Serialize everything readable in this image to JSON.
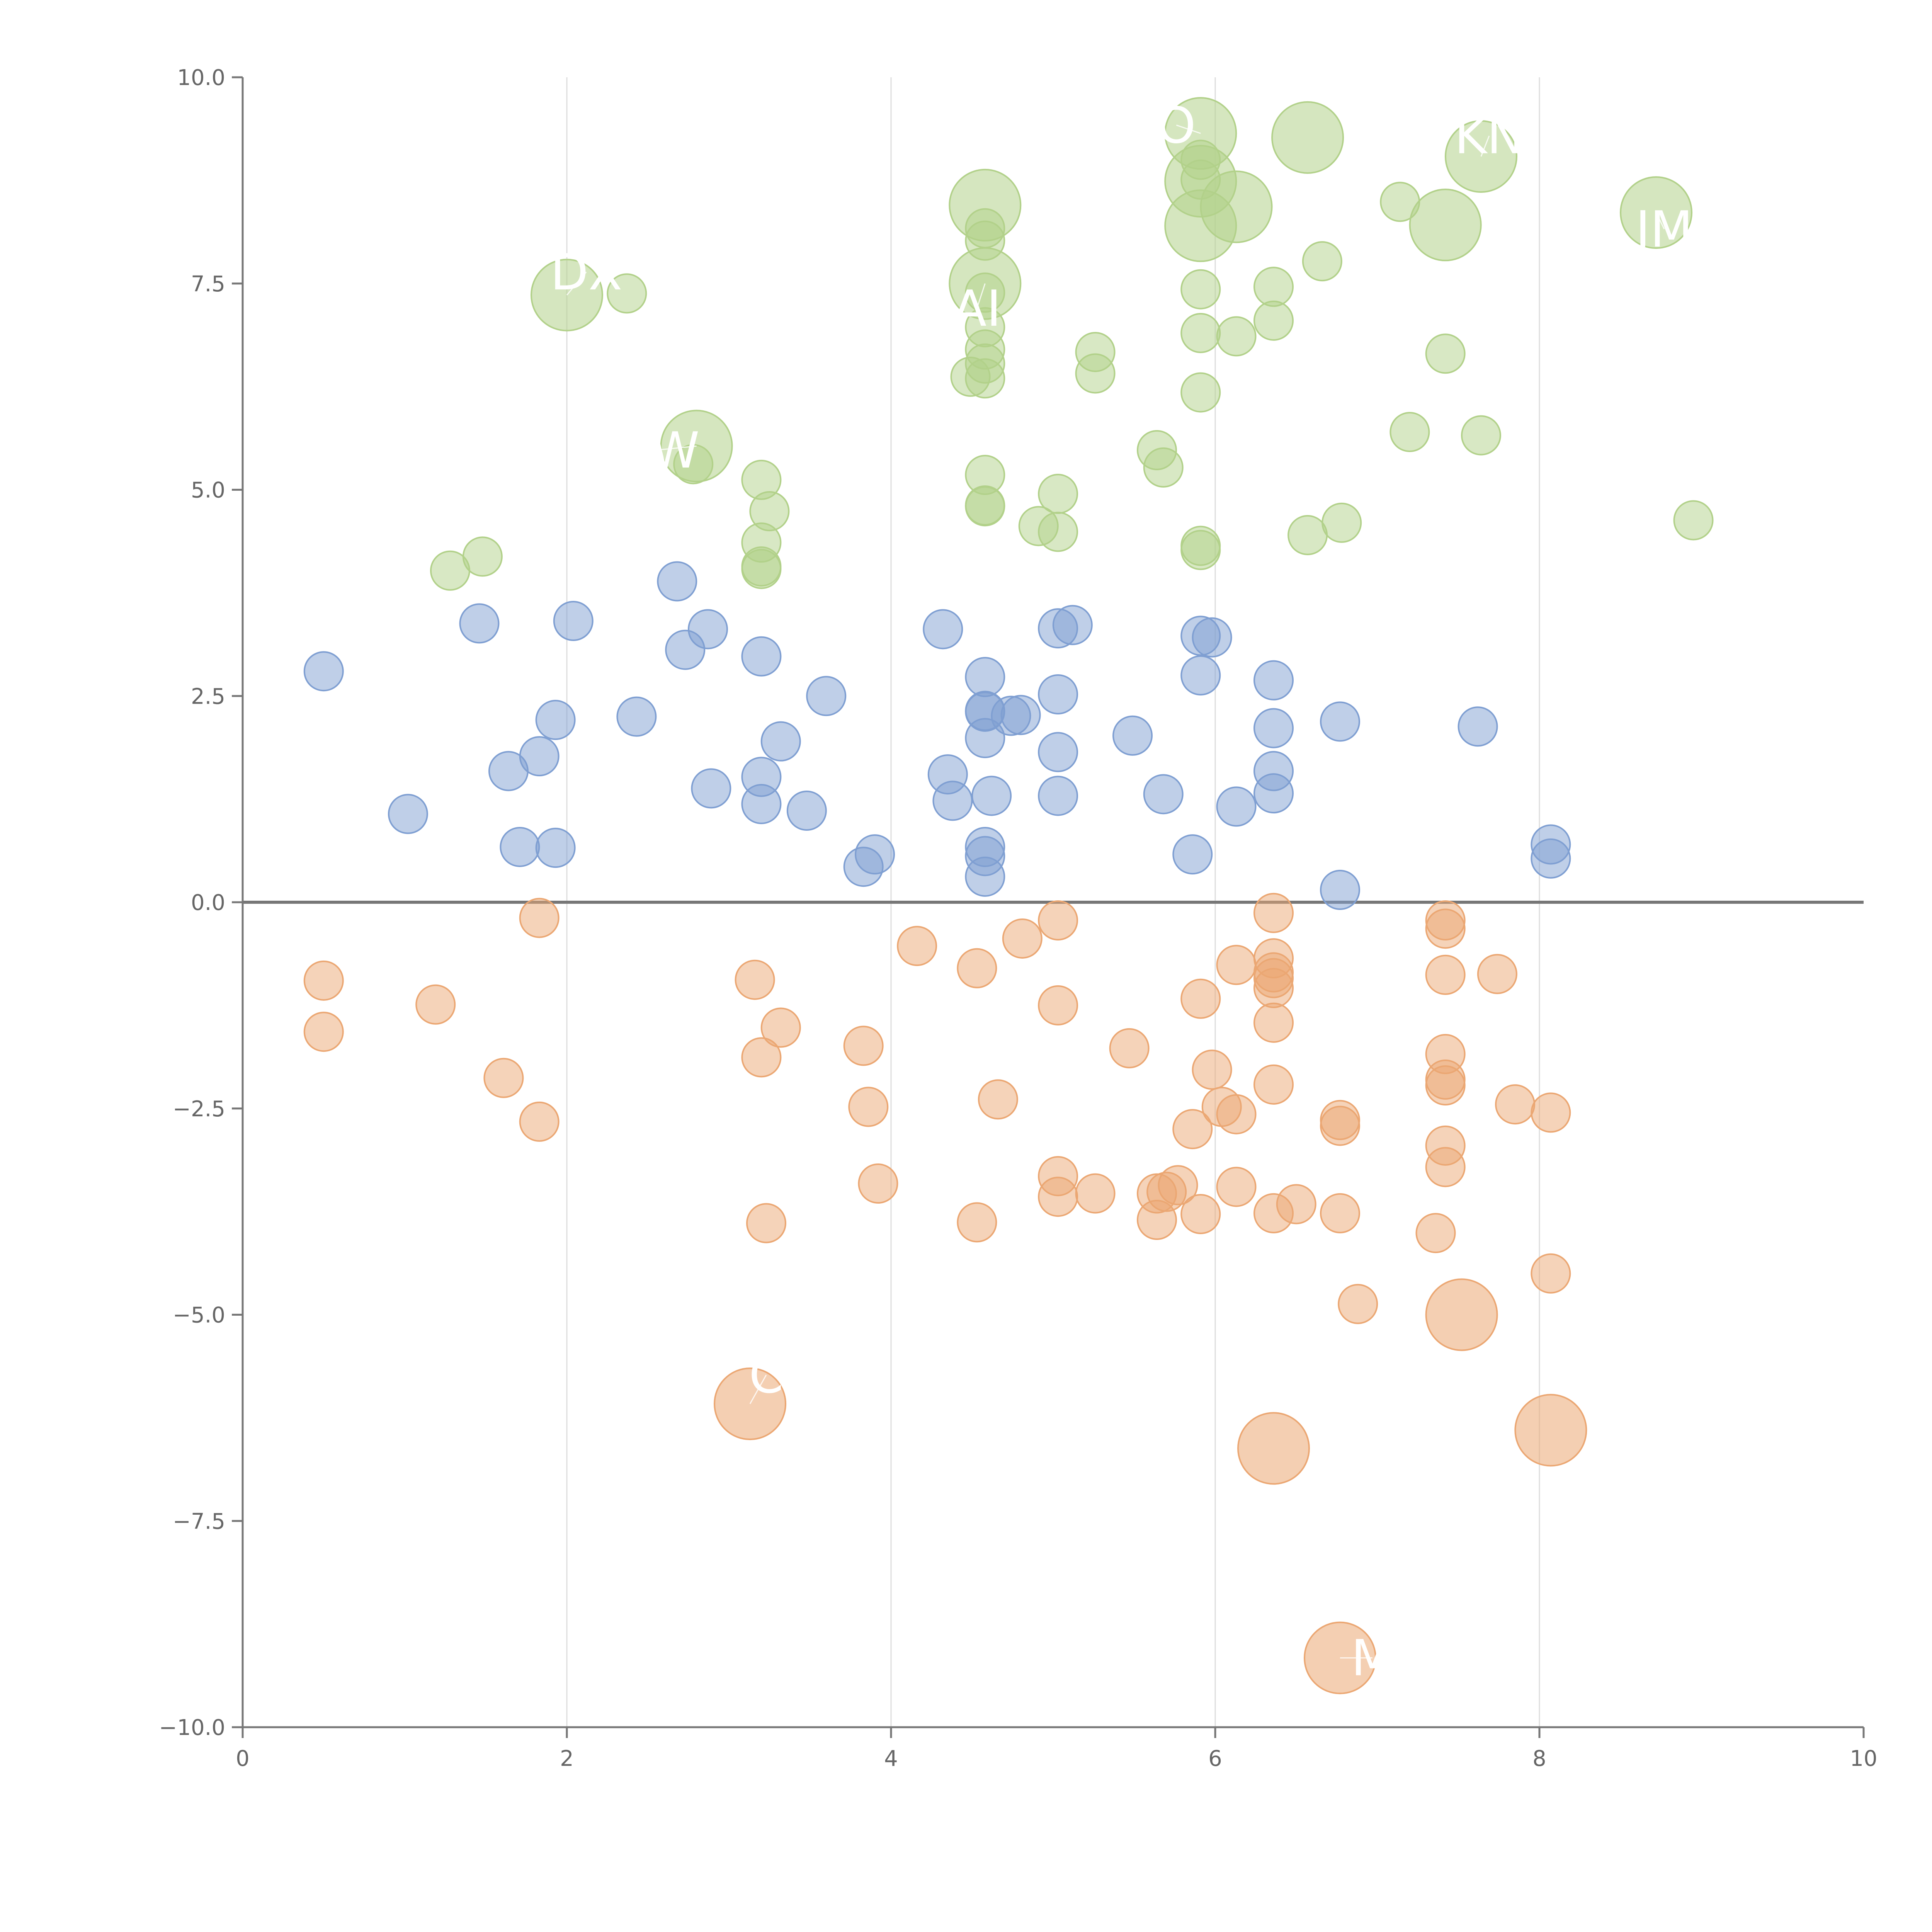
{
  "chart_data": {
    "type": "scatter",
    "title": "",
    "xlabel": "",
    "ylabel": "",
    "xlim": [
      0,
      10
    ],
    "ylim": [
      -10,
      10
    ],
    "x_ticks": [
      "0",
      "2",
      "4",
      "6",
      "8",
      "10"
    ],
    "y_ticks": [
      "10.0",
      "7.5",
      "5.0",
      "2.5",
      "0.0",
      "−2.5",
      "−5.0",
      "−7.5",
      "−10.0"
    ],
    "x_tick_values": [
      0,
      2,
      4,
      6,
      8,
      10
    ],
    "y_tick_values": [
      10,
      7.5,
      5,
      2.5,
      0,
      -2.5,
      -5,
      -7.5,
      -10
    ],
    "grid": {
      "vertical": true,
      "horizontal": false
    },
    "reference_line_y": 0,
    "colors": {
      "blue": "#7f9fd2",
      "green": "#b2d18a",
      "orange": "#eba773"
    },
    "series": [
      {
        "color": "#7f9fd2",
        "points": [
          [
            0.5,
            2.8
          ],
          [
            1.02,
            1.07
          ],
          [
            1.46,
            3.38
          ],
          [
            1.64,
            1.59
          ],
          [
            1.71,
            0.67
          ],
          [
            1.83,
            1.77
          ],
          [
            1.93,
            2.21
          ],
          [
            1.93,
            0.66
          ],
          [
            2.04,
            3.41
          ],
          [
            2.43,
            2.25
          ],
          [
            2.68,
            3.89
          ],
          [
            2.73,
            3.06
          ],
          [
            2.87,
            3.31
          ],
          [
            2.89,
            1.38
          ],
          [
            3.2,
            2.98
          ],
          [
            3.2,
            1.52
          ],
          [
            3.2,
            1.19
          ],
          [
            3.32,
            1.95
          ],
          [
            3.48,
            1.11
          ],
          [
            3.6,
            2.5
          ],
          [
            3.83,
            0.43
          ],
          [
            3.9,
            0.58
          ],
          [
            4.32,
            3.31
          ],
          [
            4.35,
            1.55
          ],
          [
            4.38,
            1.23
          ],
          [
            4.58,
            2.73
          ],
          [
            4.58,
            2.32
          ],
          [
            4.58,
            2.31
          ],
          [
            4.58,
            1.99
          ],
          [
            4.58,
            0.67
          ],
          [
            4.58,
            0.56
          ],
          [
            4.58,
            0.31
          ],
          [
            4.62,
            1.29
          ],
          [
            4.74,
            2.26
          ],
          [
            4.8,
            2.27
          ],
          [
            5.03,
            3.32
          ],
          [
            5.03,
            2.52
          ],
          [
            5.03,
            1.82
          ],
          [
            5.03,
            1.29
          ],
          [
            5.12,
            3.36
          ],
          [
            5.49,
            2.02
          ],
          [
            5.68,
            1.31
          ],
          [
            5.86,
            0.58
          ],
          [
            5.91,
            3.23
          ],
          [
            5.91,
            2.75
          ],
          [
            5.98,
            3.21
          ],
          [
            6.13,
            1.16
          ],
          [
            6.36,
            2.69
          ],
          [
            6.36,
            2.11
          ],
          [
            6.36,
            1.59
          ],
          [
            6.36,
            1.32
          ],
          [
            6.77,
            2.19
          ],
          [
            6.77,
            0.15
          ],
          [
            7.62,
            2.13
          ],
          [
            8.07,
            0.7
          ],
          [
            8.07,
            0.53
          ]
        ]
      },
      {
        "color": "#b2d18a",
        "points": [
          [
            1.28,
            4.02
          ],
          [
            1.48,
            4.19
          ],
          [
            2.37,
            7.38
          ],
          [
            2.78,
            5.31
          ],
          [
            3.2,
            5.12
          ],
          [
            3.2,
            4.36
          ],
          [
            3.2,
            4.07
          ],
          [
            3.2,
            4.04
          ],
          [
            3.25,
            4.74
          ],
          [
            4.49,
            6.37
          ],
          [
            4.58,
            8.17
          ],
          [
            4.58,
            8.02
          ],
          [
            4.58,
            7.39
          ],
          [
            4.58,
            6.97
          ],
          [
            4.58,
            6.7
          ],
          [
            4.58,
            6.53
          ],
          [
            4.58,
            6.35
          ],
          [
            4.58,
            5.18
          ],
          [
            4.58,
            4.81
          ],
          [
            4.58,
            4.8
          ],
          [
            4.91,
            4.56
          ],
          [
            5.03,
            4.95
          ],
          [
            5.03,
            4.49
          ],
          [
            5.26,
            6.67
          ],
          [
            5.26,
            6.41
          ],
          [
            5.64,
            5.48
          ],
          [
            5.68,
            5.27
          ],
          [
            5.91,
            7.43
          ],
          [
            5.91,
            6.9
          ],
          [
            5.91,
            6.18
          ],
          [
            5.91,
            4.32
          ],
          [
            5.91,
            4.27
          ],
          [
            6.13,
            6.86
          ],
          [
            6.36,
            7.46
          ],
          [
            6.36,
            7.05
          ],
          [
            6.57,
            4.45
          ],
          [
            6.66,
            7.77
          ],
          [
            6.78,
            4.6
          ],
          [
            7.14,
            8.49
          ],
          [
            7.2,
            5.7
          ],
          [
            7.42,
            6.65
          ],
          [
            7.64,
            5.66
          ],
          [
            8.95,
            4.63
          ],
          [
            5.91,
            9.0
          ],
          [
            5.91,
            8.76
          ]
        ]
      },
      {
        "color": "#eba773",
        "points": [
          [
            0.5,
            -0.95
          ],
          [
            0.5,
            -1.57
          ],
          [
            1.19,
            -1.24
          ],
          [
            1.61,
            -2.13
          ],
          [
            1.83,
            -0.19
          ],
          [
            1.83,
            -2.66
          ],
          [
            3.16,
            -0.94
          ],
          [
            3.2,
            -1.88
          ],
          [
            3.32,
            -1.52
          ],
          [
            3.23,
            -3.89
          ],
          [
            3.83,
            -1.74
          ],
          [
            3.86,
            -2.48
          ],
          [
            3.92,
            -3.41
          ],
          [
            4.16,
            -0.53
          ],
          [
            4.53,
            -0.8
          ],
          [
            4.53,
            -3.88
          ],
          [
            4.66,
            -2.39
          ],
          [
            4.81,
            -0.44
          ],
          [
            5.03,
            -0.22
          ],
          [
            5.03,
            -1.25
          ],
          [
            5.03,
            -3.32
          ],
          [
            5.03,
            -3.57
          ],
          [
            5.26,
            -3.53
          ],
          [
            5.47,
            -1.77
          ],
          [
            5.64,
            -3.53
          ],
          [
            5.64,
            -3.85
          ],
          [
            5.7,
            -3.51
          ],
          [
            5.77,
            -3.43
          ],
          [
            5.86,
            -2.75
          ],
          [
            5.91,
            -1.17
          ],
          [
            5.91,
            -3.78
          ],
          [
            5.98,
            -2.03
          ],
          [
            6.04,
            -2.48
          ],
          [
            6.13,
            -0.76
          ],
          [
            6.13,
            -2.57
          ],
          [
            6.13,
            -3.45
          ],
          [
            6.36,
            -0.13
          ],
          [
            6.36,
            -0.68
          ],
          [
            6.36,
            -0.85
          ],
          [
            6.36,
            -0.92
          ],
          [
            6.36,
            -1.04
          ],
          [
            6.36,
            -1.46
          ],
          [
            6.36,
            -2.21
          ],
          [
            6.36,
            -3.77
          ],
          [
            6.5,
            -3.66
          ],
          [
            6.77,
            -2.64
          ],
          [
            6.77,
            -2.71
          ],
          [
            6.77,
            -3.77
          ],
          [
            6.88,
            -4.87
          ],
          [
            7.36,
            -4.01
          ],
          [
            7.42,
            -0.22
          ],
          [
            7.42,
            -0.32
          ],
          [
            7.42,
            -0.88
          ],
          [
            7.42,
            -1.84
          ],
          [
            7.42,
            -2.15
          ],
          [
            7.42,
            -2.22
          ],
          [
            7.42,
            -2.95
          ],
          [
            7.42,
            -3.21
          ],
          [
            7.74,
            -0.87
          ],
          [
            7.85,
            -2.45
          ],
          [
            8.07,
            -2.55
          ],
          [
            8.07,
            -4.5
          ]
        ]
      }
    ],
    "labeled_points": [
      {
        "x": 2.0,
        "y": 7.36,
        "color": "#b2d18a",
        "label": "DX",
        "label_dx": 0.12,
        "label_dy": 0.28
      },
      {
        "x": 2.8,
        "y": 5.53,
        "color": "#b2d18a",
        "label": "DW",
        "label_dx": -0.25,
        "label_dy": -0.05
      },
      {
        "x": 4.58,
        "y": 8.45,
        "color": "#b2d18a",
        "label": "",
        "label_dx": 0,
        "label_dy": 0
      },
      {
        "x": 4.58,
        "y": 7.5,
        "color": "#b2d18a",
        "label": "AI",
        "label_dx": -0.05,
        "label_dy": -0.3
      },
      {
        "x": 5.91,
        "y": 9.32,
        "color": "#b2d18a",
        "label": "O",
        "label_dx": -0.15,
        "label_dy": 0.1
      },
      {
        "x": 5.91,
        "y": 8.74,
        "color": "#b2d18a",
        "label": "",
        "label_dx": 0,
        "label_dy": 0
      },
      {
        "x": 5.91,
        "y": 8.2,
        "color": "#b2d18a",
        "label": "",
        "label_dx": 0,
        "label_dy": 0
      },
      {
        "x": 6.13,
        "y": 8.43,
        "color": "#b2d18a",
        "label": "",
        "label_dx": 0,
        "label_dy": 0
      },
      {
        "x": 6.57,
        "y": 9.27,
        "color": "#b2d18a",
        "label": "",
        "label_dx": 0,
        "label_dy": 0
      },
      {
        "x": 7.42,
        "y": 8.21,
        "color": "#b2d18a",
        "label": "",
        "label_dx": 0,
        "label_dy": 0
      },
      {
        "x": 7.64,
        "y": 9.04,
        "color": "#b2d18a",
        "label": "KN",
        "label_dx": 0.05,
        "label_dy": 0.25
      },
      {
        "x": 8.72,
        "y": 8.36,
        "color": "#b2d18a",
        "label": "JM",
        "label_dx": 0.05,
        "label_dy": -0.2
      },
      {
        "x": 3.13,
        "y": -6.08,
        "color": "#eba773",
        "label": "C",
        "label_dx": 0.1,
        "label_dy": 0.35
      },
      {
        "x": 6.36,
        "y": -6.62,
        "color": "#eba773",
        "label": "",
        "label_dx": 0,
        "label_dy": 0
      },
      {
        "x": 7.52,
        "y": -5.0,
        "color": "#eba773",
        "label": "",
        "label_dx": 0,
        "label_dy": 0
      },
      {
        "x": 8.07,
        "y": -6.4,
        "color": "#eba773",
        "label": "",
        "label_dx": 0,
        "label_dy": 0
      },
      {
        "x": 6.77,
        "y": -9.16,
        "color": "#eba773",
        "label": "M",
        "label_dx": 0.2,
        "label_dy": 0.0
      }
    ]
  }
}
